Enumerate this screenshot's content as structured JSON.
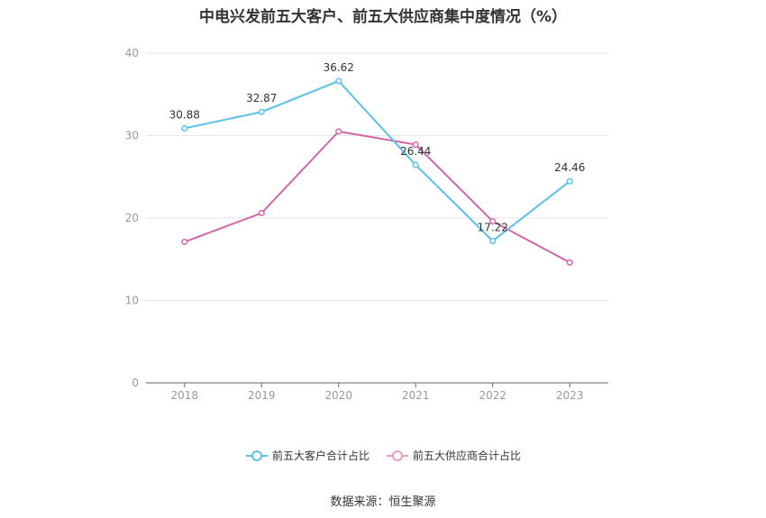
{
  "chart_data": {
    "type": "line",
    "title": "中电兴发前五大客户、前五大供应商集中度情况（%）",
    "categories": [
      "2018",
      "2019",
      "2020",
      "2021",
      "2022",
      "2023"
    ],
    "ylim": [
      0,
      40
    ],
    "yticks": [
      0,
      10,
      20,
      30,
      40
    ],
    "grid": true,
    "legend_position": "bottom",
    "series": [
      {
        "name": "前五大客户合计占比",
        "color": "#5bc0eb",
        "values": [
          30.88,
          32.87,
          36.62,
          26.44,
          17.22,
          24.46
        ],
        "labels": [
          "30.88",
          "32.87",
          "36.62",
          "26.44",
          "17.22",
          "24.46"
        ]
      },
      {
        "name": "前五大供应商合计占比",
        "color": "#d466a8",
        "values": [
          17.1,
          20.6,
          30.5,
          28.9,
          19.6,
          14.6
        ],
        "labels": []
      }
    ]
  },
  "source_text": "数据来源：恒生聚源"
}
